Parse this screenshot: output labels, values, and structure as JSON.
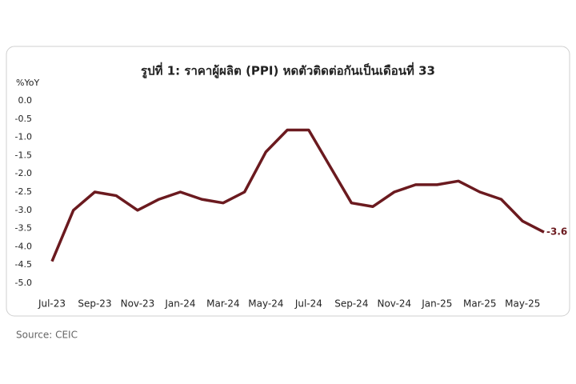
{
  "chart_data": {
    "type": "line",
    "title": "รูปที่ 1: ราคาผู้ผลิต (PPI) หดตัวติดต่อกันเป็นเดือนที่ 33",
    "y_label": "%YoY",
    "source": "Source: CEIC",
    "categories": [
      "Jul-23",
      null,
      "Sep-23",
      null,
      "Nov-23",
      null,
      "Jan-24",
      null,
      "Mar-24",
      null,
      "May-24",
      null,
      "Jul-24",
      null,
      "Sep-24",
      null,
      "Nov-24",
      null,
      "Jan-25",
      null,
      "Mar-25",
      null,
      "May-25",
      null
    ],
    "series": [
      {
        "name": "PPI",
        "color": "#6b1a1f",
        "values": [
          -4.4,
          -3.0,
          -2.5,
          -2.6,
          -3.0,
          -2.7,
          -2.5,
          -2.7,
          -2.8,
          -2.5,
          -1.4,
          -0.8,
          -0.8,
          -1.8,
          -2.8,
          -2.9,
          -2.5,
          -2.3,
          -2.3,
          -2.2,
          -2.5,
          -2.7,
          -3.3,
          -3.6
        ]
      }
    ],
    "ylim": [
      -5.0,
      0.0
    ],
    "yticks": [
      {
        "value": 0,
        "label": "0.0"
      },
      {
        "value": -0.5,
        "label": "-0.5"
      },
      {
        "value": -1,
        "label": "-1.0"
      },
      {
        "value": -1.5,
        "label": "-1.5"
      },
      {
        "value": -2,
        "label": "-2.0"
      },
      {
        "value": -2.5,
        "label": "-2.5"
      },
      {
        "value": -3,
        "label": "-3.0"
      },
      {
        "value": -3.5,
        "label": "-3.5"
      },
      {
        "value": -4,
        "label": "-4.0"
      },
      {
        "value": -4.5,
        "label": "-4.5"
      },
      {
        "value": -5,
        "label": "-5.0"
      }
    ],
    "grid": false
  }
}
